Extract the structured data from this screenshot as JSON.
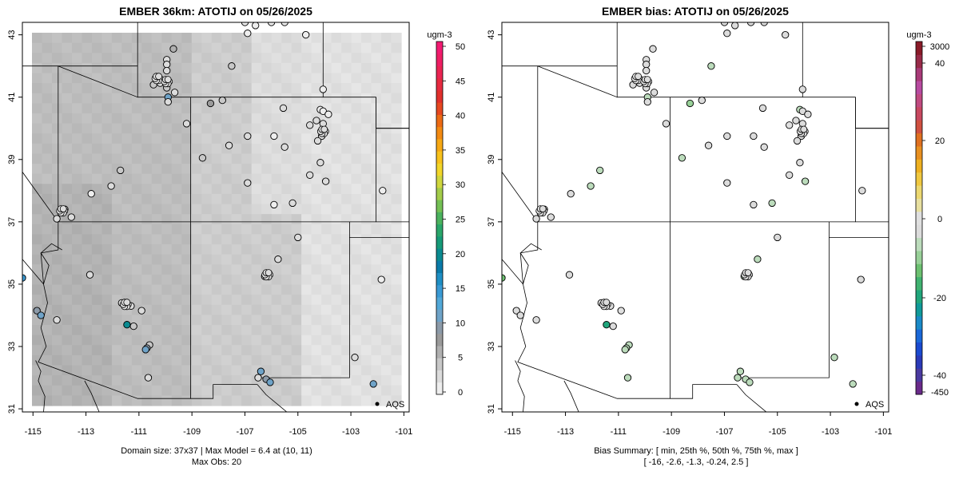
{
  "left_panel": {
    "title": "EMBER 36km: ATOTIJ on 05/26/2025",
    "caption_line1": "Domain size: 37x37 | Max Model = 6.4 at (10, 11)",
    "caption_line2": "Max Obs: 20",
    "legend_label": "AQS",
    "colorbar_unit": "ugm-3",
    "colorbar_ticks": [
      "0",
      "5",
      "10",
      "15",
      "20",
      "25",
      "30",
      "35",
      "40",
      "45",
      "50"
    ],
    "colorbar_colors_bottom_to_top": [
      "#eeeeee",
      "#dcdcdc",
      "#c8c8c8",
      "#b0b0b0",
      "#9a9a9a",
      "#8c9aa8",
      "#6fa3c8",
      "#52a8d8",
      "#3a9ad4",
      "#1f8fc4",
      "#0a7aa8",
      "#0a8a90",
      "#169a78",
      "#2aa66a",
      "#4bb25e",
      "#74c055",
      "#a3cc4a",
      "#cfd63e",
      "#f2d62a",
      "#f8c21c",
      "#f6a814",
      "#f28a12",
      "#ec6a14",
      "#e64820",
      "#e0302c",
      "#e62a40",
      "#ea2452",
      "#ee1e64",
      "#f21a72"
    ],
    "x_ticks": [
      "-115",
      "-113",
      "-111",
      "-109",
      "-107",
      "-105",
      "-103",
      "-101"
    ],
    "y_ticks": [
      "31",
      "33",
      "35",
      "37",
      "39",
      "41",
      "43"
    ]
  },
  "right_panel": {
    "title": "EMBER bias: ATOTIJ on 05/26/2025",
    "caption_line1": "Bias Summary: [ min, 25th %, 50th %, 75th %, max ]",
    "caption_line2": "[ -16,  -2.6,  -1.3,  -0.24,  2.5 ]",
    "legend_label": "AQS",
    "colorbar_unit": "ugm-3",
    "colorbar_ticks": [
      "-450",
      "-40",
      "-20",
      "0",
      "20",
      "40",
      "3000"
    ],
    "colorbar_colors_bottom_to_top": [
      "#6a2a8a",
      "#4a3aa0",
      "#2a3ab8",
      "#1a4ad0",
      "#1a68d8",
      "#1a8ac8",
      "#109a9a",
      "#20a67c",
      "#40b270",
      "#6cc070",
      "#98d098",
      "#bcdcbc",
      "#dcdcdc",
      "#e0e0e0",
      "#e8e0a0",
      "#ecd870",
      "#f0c840",
      "#eeb020",
      "#e89020",
      "#e07020",
      "#d05040",
      "#c84860",
      "#c04a80",
      "#b84aa0",
      "#a83a78",
      "#982a48",
      "#8a1a28"
    ],
    "x_ticks": [
      "-115",
      "-113",
      "-111",
      "-109",
      "-107",
      "-105",
      "-103",
      "-101"
    ],
    "y_ticks": [
      "31",
      "33",
      "35",
      "37",
      "39",
      "41",
      "43"
    ]
  },
  "map_extent": {
    "lon_min": -115.4,
    "lon_max": -100.8,
    "lat_min": 30.9,
    "lat_max": 43.4
  },
  "sites": [
    {
      "lon": -107.0,
      "lat": 43.4,
      "obs": 0.5,
      "bias": -0.4
    },
    {
      "lon": -106.0,
      "lat": 43.4,
      "obs": 0.5,
      "bias": -0.5
    },
    {
      "lon": -106.6,
      "lat": 43.3,
      "obs": 0.8,
      "bias": -0.6
    },
    {
      "lon": -105.5,
      "lat": 43.4,
      "obs": 0.6,
      "bias": -0.5
    },
    {
      "lon": -106.9,
      "lat": 43.05,
      "obs": 1.5,
      "bias": -1.2
    },
    {
      "lon": -104.7,
      "lat": 43.0,
      "obs": 0.8,
      "bias": -0.5
    },
    {
      "lon": -109.7,
      "lat": 42.55,
      "obs": 6.0,
      "bias": -1.0
    },
    {
      "lon": -109.95,
      "lat": 42.2,
      "obs": 2.5,
      "bias": -1.5
    },
    {
      "lon": -109.95,
      "lat": 42.05,
      "obs": 2.5,
      "bias": -1.5
    },
    {
      "lon": -109.95,
      "lat": 41.85,
      "obs": 3.0,
      "bias": -1.6
    },
    {
      "lon": -107.5,
      "lat": 42.0,
      "obs": 4.5,
      "bias": -3.5
    },
    {
      "lon": -110.45,
      "lat": 41.4,
      "obs": 3.5,
      "bias": -1.2
    },
    {
      "lon": -110.2,
      "lat": 41.45,
      "obs": 3.0,
      "bias": -1.0
    },
    {
      "lon": -109.95,
      "lat": 41.3,
      "obs": 4.5,
      "bias": -1.5
    },
    {
      "lon": -109.9,
      "lat": 41.0,
      "obs": 12.0,
      "bias": -2.5
    },
    {
      "lon": -109.9,
      "lat": 40.85,
      "obs": 3.0,
      "bias": -1.4
    },
    {
      "lon": -109.65,
      "lat": 41.15,
      "obs": 2.5,
      "bias": -1.0
    },
    {
      "lon": -108.3,
      "lat": 40.8,
      "obs": 8.5,
      "bias": -5.0
    },
    {
      "lon": -107.85,
      "lat": 40.9,
      "obs": 3.5,
      "bias": -1.0
    },
    {
      "lon": -104.05,
      "lat": 41.25,
      "obs": 1.0,
      "bias": -0.5
    },
    {
      "lon": -105.55,
      "lat": 40.65,
      "obs": 2.0,
      "bias": -0.8
    },
    {
      "lon": -104.15,
      "lat": 40.6,
      "obs": 1.5,
      "bias": -2.0
    },
    {
      "lon": -104.05,
      "lat": 40.55,
      "obs": 1.5,
      "bias": -1.0
    },
    {
      "lon": -103.85,
      "lat": 40.45,
      "obs": 1.5,
      "bias": -0.6
    },
    {
      "lon": -104.3,
      "lat": 40.25,
      "obs": 2.0,
      "bias": -0.8
    },
    {
      "lon": -104.55,
      "lat": 40.1,
      "obs": 2.5,
      "bias": 2.5
    },
    {
      "lon": -104.05,
      "lat": 40.15,
      "obs": 3.0,
      "bias": -1.0
    },
    {
      "lon": -104.05,
      "lat": 39.9,
      "obs": 3.0,
      "bias": -1.1
    },
    {
      "lon": -104.1,
      "lat": 39.75,
      "obs": 3.0,
      "bias": -1.2
    },
    {
      "lon": -104.25,
      "lat": 39.6,
      "obs": 2.5,
      "bias": -0.9
    },
    {
      "lon": -109.2,
      "lat": 40.15,
      "obs": 2.0,
      "bias": -0.8
    },
    {
      "lon": -106.9,
      "lat": 39.75,
      "obs": 2.0,
      "bias": -0.6
    },
    {
      "lon": -107.6,
      "lat": 39.45,
      "obs": 2.0,
      "bias": -0.6
    },
    {
      "lon": -105.9,
      "lat": 39.75,
      "obs": 1.5,
      "bias": -0.5
    },
    {
      "lon": -105.5,
      "lat": 39.4,
      "obs": 2.0,
      "bias": -0.7
    },
    {
      "lon": -108.6,
      "lat": 39.05,
      "obs": 4.5,
      "bias": -4.0
    },
    {
      "lon": -104.15,
      "lat": 38.9,
      "obs": 2.0,
      "bias": -0.7
    },
    {
      "lon": -104.55,
      "lat": 38.5,
      "obs": 2.0,
      "bias": -0.8
    },
    {
      "lon": -103.95,
      "lat": 38.3,
      "obs": 2.0,
      "bias": -2.0
    },
    {
      "lon": -106.9,
      "lat": 38.25,
      "obs": 2.0,
      "bias": -0.7
    },
    {
      "lon": -101.8,
      "lat": 38.0,
      "obs": 1.0,
      "bias": -0.5
    },
    {
      "lon": -111.7,
      "lat": 38.65,
      "obs": 4.5,
      "bias": -4.0
    },
    {
      "lon": -112.05,
      "lat": 38.15,
      "obs": 3.0,
      "bias": -3.5
    },
    {
      "lon": -112.8,
      "lat": 37.9,
      "obs": 1.5,
      "bias": -0.5
    },
    {
      "lon": -105.9,
      "lat": 37.55,
      "obs": 1.5,
      "bias": -0.7
    },
    {
      "lon": -105.2,
      "lat": 37.6,
      "obs": 2.5,
      "bias": -3.5
    },
    {
      "lon": -113.55,
      "lat": 37.15,
      "obs": 2.0,
      "bias": -0.6
    },
    {
      "lon": -114.1,
      "lat": 37.1,
      "obs": 2.0,
      "bias": -0.6
    },
    {
      "lon": -113.8,
      "lat": 37.4,
      "obs": 2.0,
      "bias": -0.6
    },
    {
      "lon": -105.0,
      "lat": 36.5,
      "obs": 2.0,
      "bias": -0.8
    },
    {
      "lon": -105.75,
      "lat": 35.8,
      "obs": 2.5,
      "bias": -2.5
    },
    {
      "lon": -106.1,
      "lat": 35.35,
      "obs": 3.0,
      "bias": -2.4
    },
    {
      "lon": -106.25,
      "lat": 35.25,
      "obs": 3.0,
      "bias": -2.5
    },
    {
      "lon": -112.85,
      "lat": 35.3,
      "obs": 2.0,
      "bias": -0.6
    },
    {
      "lon": -101.85,
      "lat": 35.15,
      "obs": 1.0,
      "bias": -0.3
    },
    {
      "lon": -115.4,
      "lat": 35.2,
      "obs": 14.0,
      "bias": -10.0
    },
    {
      "lon": -111.65,
      "lat": 34.4,
      "obs": 2.5,
      "bias": -0.8
    },
    {
      "lon": -111.3,
      "lat": 34.3,
      "obs": 2.5,
      "bias": -1.0
    },
    {
      "lon": -110.9,
      "lat": 34.15,
      "obs": 2.0,
      "bias": 2.0
    },
    {
      "lon": -114.85,
      "lat": 34.15,
      "obs": 10.0,
      "bias": -0.5
    },
    {
      "lon": -114.7,
      "lat": 34.0,
      "obs": 11.0,
      "bias": -0.8
    },
    {
      "lon": -114.1,
      "lat": 33.85,
      "obs": 3.0,
      "bias": -0.6
    },
    {
      "lon": -111.45,
      "lat": 33.7,
      "obs": 20.0,
      "bias": -16.0
    },
    {
      "lon": -111.2,
      "lat": 33.65,
      "obs": 4.5,
      "bias": -0.8
    },
    {
      "lon": -110.6,
      "lat": 33.05,
      "obs": 4.0,
      "bias": -1.8
    },
    {
      "lon": -110.7,
      "lat": 32.95,
      "obs": 10.0,
      "bias": -2.8
    },
    {
      "lon": -110.75,
      "lat": 32.9,
      "obs": 11.0,
      "bias": -2.6
    },
    {
      "lon": -102.85,
      "lat": 32.65,
      "obs": 2.5,
      "bias": -2.5
    },
    {
      "lon": -106.4,
      "lat": 32.2,
      "obs": 11.0,
      "bias": -2.8
    },
    {
      "lon": -106.5,
      "lat": 32.0,
      "obs": 3.0,
      "bias": -2.2
    },
    {
      "lon": -106.2,
      "lat": 31.95,
      "obs": 9.0,
      "bias": -2.4
    },
    {
      "lon": -106.05,
      "lat": 31.85,
      "obs": 11.0,
      "bias": -3.5
    },
    {
      "lon": -110.65,
      "lat": 32.0,
      "obs": 3.0,
      "bias": -2.5
    },
    {
      "lon": -102.15,
      "lat": 31.8,
      "obs": 11.0,
      "bias": -2.8
    }
  ],
  "clusters": [
    {
      "lon": -110.3,
      "lat": 41.6
    },
    {
      "lon": -109.95,
      "lat": 41.5
    },
    {
      "lon": -106.15,
      "lat": 35.3
    },
    {
      "lon": -111.5,
      "lat": 34.35
    },
    {
      "lon": -113.9,
      "lat": 37.35
    },
    {
      "lon": -104.05,
      "lat": 39.9
    }
  ],
  "grid": {
    "nx": 37,
    "ny": 37,
    "levels_bottom_to_top_rows": "generated"
  }
}
